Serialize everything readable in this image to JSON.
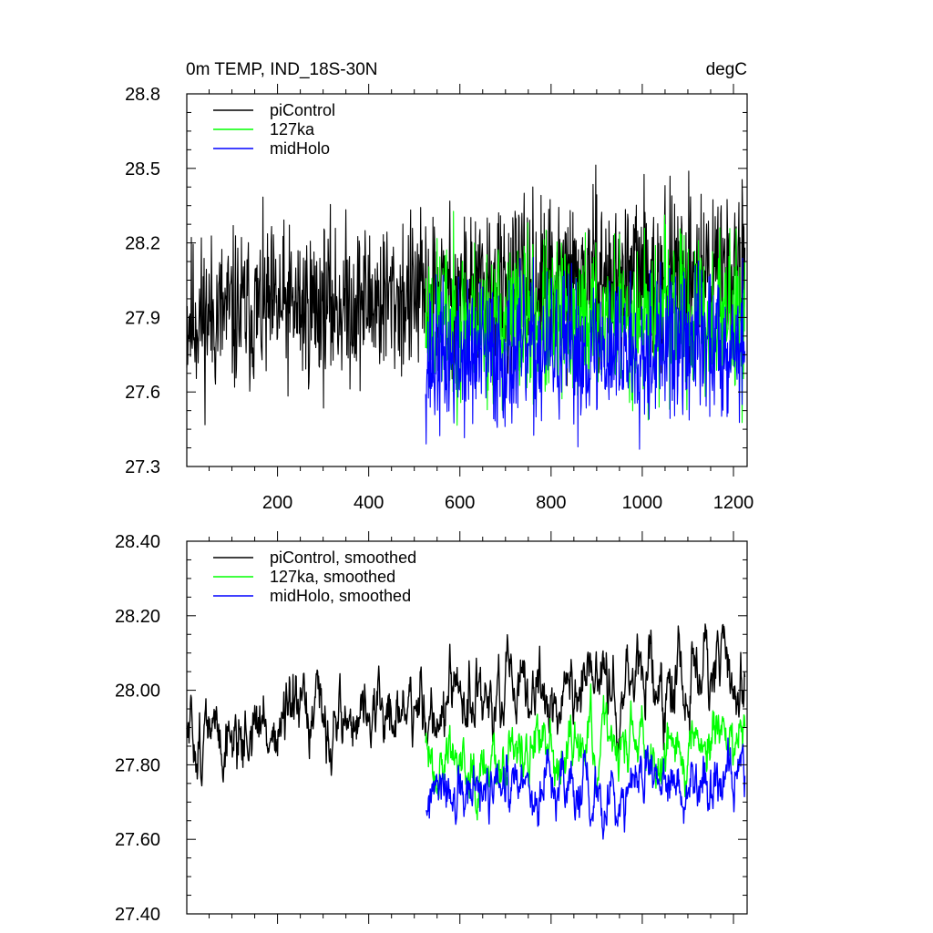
{
  "chart_data": [
    {
      "type": "line",
      "title_left": "0m TEMP, IND_18S-30N",
      "title_right": "degC",
      "xlabel": "",
      "ylabel": "",
      "xlim": [
        1,
        1230
      ],
      "ylim": [
        27.3,
        28.8
      ],
      "xticks": [
        200,
        400,
        600,
        800,
        1000,
        1200
      ],
      "xtick_labels": [
        "200",
        "400",
        "600",
        "800",
        "1000",
        "1200"
      ],
      "yticks": [
        27.3,
        27.6,
        27.9,
        28.2,
        28.5,
        28.8
      ],
      "ytick_labels": [
        "27.3",
        "27.6",
        "27.9",
        "28.2",
        "28.5",
        "28.8"
      ],
      "legend": "top-left",
      "series": [
        {
          "name": "piControl",
          "color": "#000000",
          "x_start": 1,
          "x_end": 1225,
          "mean_start": 27.9,
          "mean_end": 28.1,
          "noise": 0.16,
          "seed": 11
        },
        {
          "name": "127ka",
          "color": "#00ff00",
          "x_start": 525,
          "x_end": 1225,
          "mean_start": 27.88,
          "mean_end": 27.9,
          "noise": 0.16,
          "seed": 23
        },
        {
          "name": "midHolo",
          "color": "#0000ff",
          "x_start": 525,
          "x_end": 1225,
          "mean_start": 27.73,
          "mean_end": 27.8,
          "noise": 0.15,
          "seed": 37
        }
      ]
    },
    {
      "type": "line",
      "xlabel": "",
      "ylabel": "",
      "xlim": [
        1,
        1230
      ],
      "ylim": [
        27.4,
        28.4
      ],
      "xticks": [
        200,
        400,
        600,
        800,
        1000,
        1200
      ],
      "yticks": [
        27.4,
        27.6,
        27.8,
        28.0,
        28.2,
        28.4
      ],
      "ytick_labels": [
        "27.40",
        "27.60",
        "27.80",
        "28.00",
        "28.20",
        "28.40"
      ],
      "legend": "top-left",
      "series": [
        {
          "name": "piControl, smoothed",
          "color": "#000000",
          "x_start": 1,
          "x_end": 1225,
          "mean_start": 27.87,
          "mean_end": 28.05,
          "noise": 0.06,
          "seed": 51
        },
        {
          "name": "127ka, smoothed",
          "color": "#00ff00",
          "x_start": 525,
          "x_end": 1225,
          "mean_start": 27.82,
          "mean_end": 27.88,
          "noise": 0.05,
          "seed": 63
        },
        {
          "name": "midHolo, smoothed",
          "color": "#0000ff",
          "x_start": 525,
          "x_end": 1225,
          "mean_start": 27.7,
          "mean_end": 27.76,
          "noise": 0.05,
          "seed": 77
        }
      ]
    }
  ]
}
